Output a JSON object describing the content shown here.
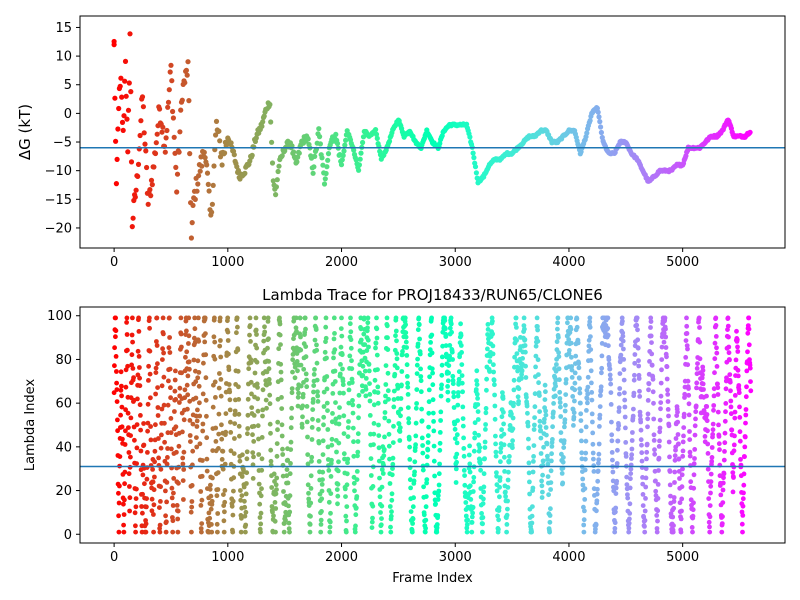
{
  "chart_data": [
    {
      "type": "scatter",
      "title": "",
      "xlabel": "",
      "ylabel": "ΔG (kT)",
      "xlim": [
        -300,
        5900
      ],
      "ylim": [
        -23.5,
        17
      ],
      "xticks": [
        0,
        1000,
        2000,
        3000,
        4000,
        5000
      ],
      "yticks": [
        -20,
        -15,
        -10,
        -5,
        0,
        5,
        10,
        15
      ],
      "xtick_labels": [
        "0",
        "1000",
        "2000",
        "3000",
        "4000",
        "5000"
      ],
      "ytick_labels": [
        "−20",
        "−15",
        "−10",
        "−5",
        "0",
        "5",
        "10",
        "15"
      ],
      "hline": -6.0,
      "hline_color": "#1f77b4",
      "colormap": "rainbow (reversed: red at frame 0 → purple at last frame)",
      "series": [
        {
          "x": [
            0,
            20,
            40,
            60,
            80,
            100,
            120,
            140,
            160,
            200,
            250,
            300,
            350,
            400,
            450,
            500,
            550,
            600,
            650,
            680,
            700,
            750,
            800,
            850,
            900,
            950,
            1000,
            1050,
            1100,
            1150,
            1200,
            1250,
            1300,
            1340,
            1370,
            1400,
            1420,
            1450,
            1500,
            1550,
            1600,
            1650,
            1700,
            1750,
            1800,
            1850,
            1900,
            1950,
            2000,
            2050,
            2100,
            2150,
            2200,
            2250,
            2300,
            2350,
            2400,
            2450,
            2500,
            2550,
            2600,
            2650,
            2700,
            2750,
            2800,
            2850,
            2900,
            2950,
            3000,
            3050,
            3100,
            3150,
            3200,
            3250,
            3300,
            3350,
            3400,
            3450,
            3500,
            3550,
            3600,
            3650,
            3700,
            3750,
            3800,
            3850,
            3900,
            3950,
            4000,
            4050,
            4100,
            4150,
            4200,
            4250,
            4300,
            4350,
            4400,
            4450,
            4500,
            4550,
            4600,
            4650,
            4700,
            4750,
            4800,
            4850,
            4900,
            4950,
            5000,
            5050,
            5100,
            5150,
            5200,
            5250,
            5300,
            5350,
            5400,
            5450,
            5500,
            5550,
            5600
          ],
          "y": [
            12,
            -14,
            2,
            5,
            -4,
            10,
            -8,
            14,
            -19,
            -12,
            3,
            -16,
            -9,
            1,
            -6,
            8,
            -13,
            4,
            8,
            -22,
            -15,
            -10,
            -6,
            -19,
            -2,
            -8,
            -4,
            -7,
            -11,
            -10,
            -8,
            -4,
            -2,
            1,
            2,
            -12,
            -14,
            -9,
            -6,
            -5,
            -9,
            -5,
            -4,
            -10,
            -3,
            -12,
            -5,
            -4,
            -9,
            -3,
            -6,
            -10,
            -3,
            -4,
            -3,
            -8,
            -6,
            -3,
            -1,
            -4,
            -3,
            -5,
            -6,
            -3,
            -5,
            -6,
            -3,
            -2,
            -2,
            -2,
            -2,
            -6,
            -12,
            -11,
            -9,
            -8,
            -8,
            -7,
            -7,
            -6,
            -5,
            -4,
            -4,
            -3,
            -3,
            -5,
            -5,
            -4,
            -3,
            -3,
            -7,
            -4,
            0,
            1,
            -5,
            -7,
            -7,
            -5,
            -5,
            -7,
            -8,
            -10,
            -12,
            -11,
            -10,
            -10,
            -10,
            -9,
            -9,
            -6,
            -6,
            -6,
            -5,
            -4,
            -4,
            -3,
            -1,
            -4,
            -4,
            -4,
            -3
          ]
        }
      ]
    },
    {
      "type": "scatter",
      "title": "Lambda Trace for PROJ18433/RUN65/CLONE6",
      "xlabel": "Frame Index",
      "ylabel": "Lambda Index",
      "xlim": [
        -300,
        5900
      ],
      "ylim": [
        -4,
        104
      ],
      "xticks": [
        0,
        1000,
        2000,
        3000,
        4000,
        5000
      ],
      "yticks": [
        0,
        20,
        40,
        60,
        80,
        100
      ],
      "xtick_labels": [
        "0",
        "1000",
        "2000",
        "3000",
        "4000",
        "5000"
      ],
      "ytick_labels": [
        "0",
        "20",
        "40",
        "60",
        "80",
        "100"
      ],
      "hline": 31,
      "hline_color": "#1f77b4",
      "colormap": "rainbow (reversed: red at frame 0 → purple at last frame)",
      "frame_range": [
        0,
        5600
      ],
      "lambda_range": [
        0,
        100
      ]
    }
  ]
}
